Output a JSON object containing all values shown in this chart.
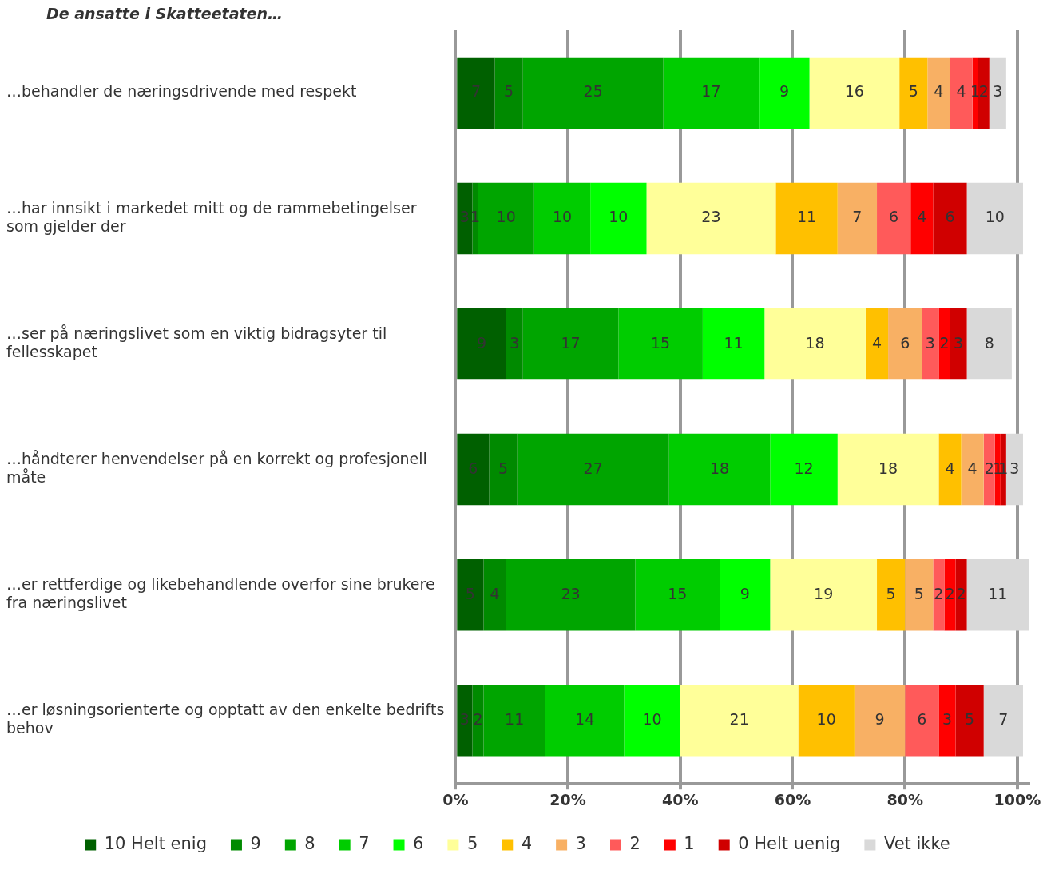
{
  "chart_data": {
    "type": "bar",
    "orientation": "horizontal",
    "stacked": true,
    "title": "De ansatte i Skatteetaten…",
    "categories": [
      "…behandler de næringsdrivende med respekt",
      "…har innsikt i markedet mitt og de rammebetingelser\nsom gjelder der",
      "…ser på næringslivet som en viktig bidragsyter til\nfellesskapet",
      "…håndterer henvendelser på en korrekt og profesjonell\nmåte",
      "…er rettferdige og likebehandlende overfor sine brukere\nfra næringslivet",
      "…er løsningsorienterte og opptatt av den enkelte bedrifts\nbehov"
    ],
    "series": [
      {
        "name": "10 Helt enig",
        "color": "#006000",
        "values": [
          7,
          3,
          9,
          6,
          5,
          3
        ]
      },
      {
        "name": "9",
        "color": "#008a00",
        "values": [
          5,
          1,
          3,
          5,
          4,
          2
        ]
      },
      {
        "name": "8",
        "color": "#00a500",
        "values": [
          25,
          10,
          17,
          27,
          23,
          11
        ]
      },
      {
        "name": "7",
        "color": "#00cc00",
        "values": [
          17,
          10,
          15,
          18,
          15,
          14
        ]
      },
      {
        "name": "6",
        "color": "#00ff00",
        "values": [
          9,
          10,
          11,
          12,
          9,
          10
        ]
      },
      {
        "name": "5",
        "color": "#ffff99",
        "values": [
          16,
          23,
          18,
          18,
          19,
          21
        ]
      },
      {
        "name": "4",
        "color": "#ffc000",
        "values": [
          5,
          11,
          4,
          4,
          5,
          10
        ]
      },
      {
        "name": "3",
        "color": "#f8b064",
        "values": [
          4,
          7,
          6,
          4,
          5,
          9
        ]
      },
      {
        "name": "2",
        "color": "#ff5a5a",
        "values": [
          4,
          6,
          3,
          2,
          2,
          6
        ]
      },
      {
        "name": "1",
        "color": "#ff0000",
        "values": [
          1,
          4,
          2,
          1,
          2,
          3
        ]
      },
      {
        "name": "0 Helt uenig",
        "color": "#d00000",
        "values": [
          2,
          6,
          3,
          1,
          2,
          5
        ]
      },
      {
        "name": "Vet ikke",
        "color": "#d9d9d9",
        "values": [
          3,
          10,
          8,
          3,
          11,
          7
        ]
      }
    ],
    "xlim": [
      0,
      102
    ],
    "xticks": [
      {
        "value": 0,
        "label": "0%"
      },
      {
        "value": 20,
        "label": "20%"
      },
      {
        "value": 40,
        "label": "40%"
      },
      {
        "value": 60,
        "label": "60%"
      },
      {
        "value": 80,
        "label": "80%"
      },
      {
        "value": 100,
        "label": "100%"
      }
    ],
    "data_labels": true,
    "grid": "x",
    "legend": "bottom"
  }
}
